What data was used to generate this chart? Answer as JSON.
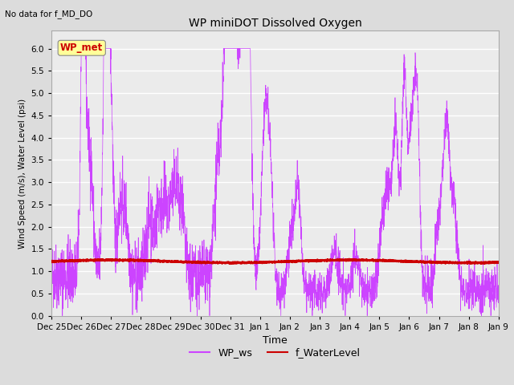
{
  "title": "WP miniDOT Dissolved Oxygen",
  "top_left_text": "No data for f_MD_DO",
  "xlabel": "Time",
  "ylabel": "Wind Speed (m/s), Water Level (psi)",
  "ylim": [
    0.0,
    6.4
  ],
  "yticks": [
    0.0,
    0.5,
    1.0,
    1.5,
    2.0,
    2.5,
    3.0,
    3.5,
    4.0,
    4.5,
    5.0,
    5.5,
    6.0
  ],
  "bg_color": "#dcdcdc",
  "plot_bg_color": "#ebebeb",
  "legend_label1": "WP_ws",
  "legend_label2": "f_WaterLevel",
  "legend_color1": "#cc44ff",
  "legend_color2": "#cc0000",
  "wp_met_box_text": "WP_met",
  "wp_met_box_color": "#cc0000",
  "wp_met_box_bg": "#ffff99",
  "ws_line_color": "#cc44ff",
  "wl_line_color": "#cc0000",
  "water_level_value": 1.22,
  "n_points": 3000,
  "x_start_days": 0,
  "x_end_days": 15,
  "xtick_labels": [
    "Dec 25",
    "Dec 26",
    "Dec 27",
    "Dec 28",
    "Dec 29",
    "Dec 30",
    "Dec 31",
    "Jan 1",
    "Jan 2",
    "Jan 3",
    "Jan 4",
    "Jan 5",
    "Jan 6",
    "Jan 7",
    "Jan 8",
    "Jan 9"
  ],
  "xtick_positions": [
    0,
    1,
    2,
    3,
    4,
    5,
    6,
    7,
    8,
    9,
    10,
    11,
    12,
    13,
    14,
    15
  ]
}
